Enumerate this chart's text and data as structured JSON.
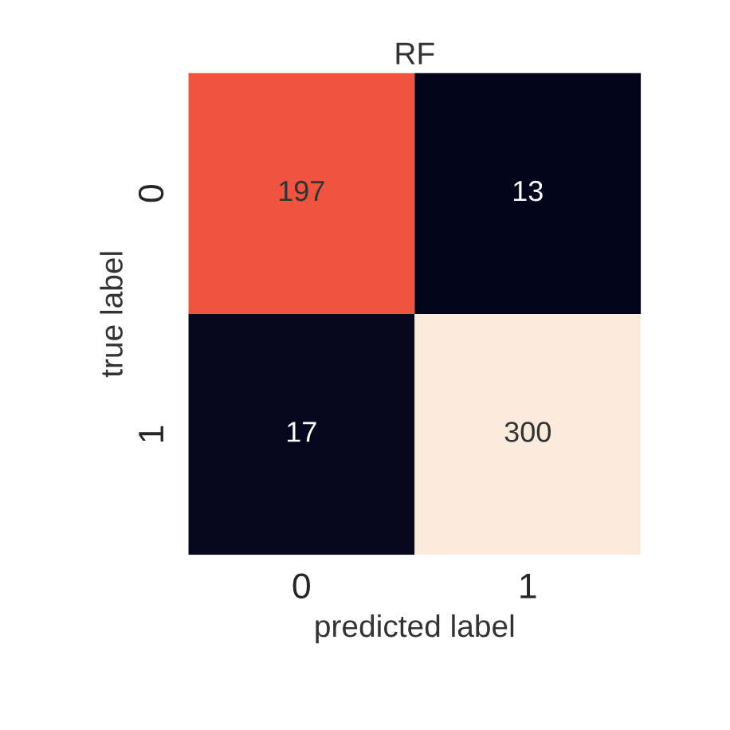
{
  "chart_data": {
    "type": "heatmap",
    "title": "RF",
    "xlabel": "predicted label",
    "ylabel": "true label",
    "categories": [
      "0",
      "1"
    ],
    "y_categories": [
      "0",
      "1"
    ],
    "cells": [
      [
        197,
        13
      ],
      [
        17,
        300
      ]
    ],
    "data_labels": true
  }
}
